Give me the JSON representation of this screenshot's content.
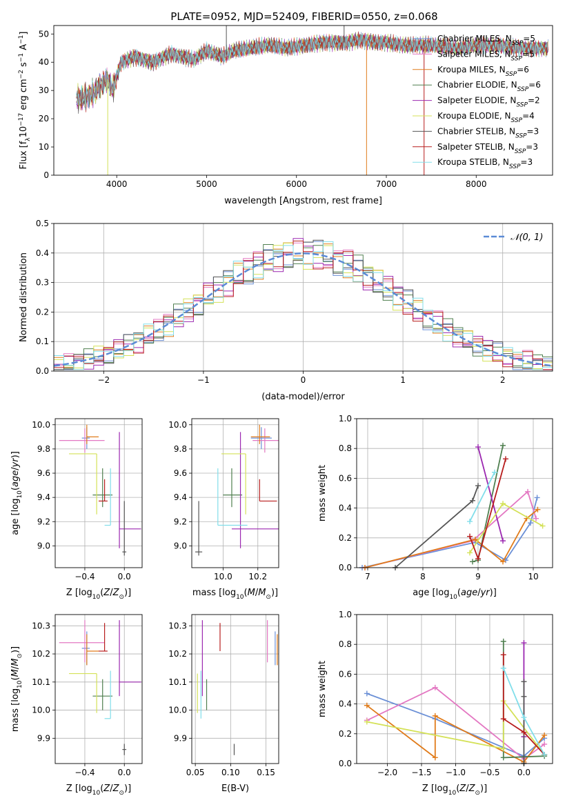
{
  "figure": {
    "title": "PLATE=0952, MJD=52409, FIBERID=0550, z=0.068"
  },
  "chart_data": [
    {
      "id": "spectrum",
      "type": "line",
      "title": "PLATE=0952, MJD=52409, FIBERID=0550, z=0.068",
      "xlabel": "wavelength [Angstrom, rest frame]",
      "ylabel": "Flux [f_λ 10^-17 erg cm^-2 s^-1 A^-1]",
      "xlim": [
        3300,
        8850
      ],
      "ylim": [
        0,
        53
      ],
      "xticks": [
        4000,
        5000,
        6000,
        7000,
        8000
      ],
      "yticks": [
        0,
        10,
        20,
        30,
        40,
        50
      ],
      "grid": false,
      "legend_position": "top-right",
      "anchor_points": [
        [
          3550,
          27
        ],
        [
          3700,
          28
        ],
        [
          3900,
          34
        ],
        [
          3950,
          30
        ],
        [
          4050,
          40
        ],
        [
          4200,
          42
        ],
        [
          4400,
          40
        ],
        [
          4600,
          43
        ],
        [
          4861,
          41
        ],
        [
          5000,
          44
        ],
        [
          5175,
          42
        ],
        [
          5300,
          44
        ],
        [
          5500,
          45
        ],
        [
          5700,
          46
        ],
        [
          5890,
          45
        ],
        [
          6100,
          46
        ],
        [
          6300,
          47
        ],
        [
          6563,
          47
        ],
        [
          6700,
          48
        ],
        [
          6900,
          47
        ],
        [
          7000,
          47
        ],
        [
          7200,
          46
        ],
        [
          7500,
          46
        ],
        [
          7800,
          45
        ],
        [
          8000,
          46
        ],
        [
          8200,
          46
        ],
        [
          8500,
          45
        ],
        [
          8800,
          45
        ]
      ],
      "series": [
        {
          "name": "Chabrier MILES, N_SSP=5",
          "color": "#6a8fd6"
        },
        {
          "name": "Salpeter MILES, N_SSP=5",
          "color": "#e377c2"
        },
        {
          "name": "Kroupa MILES, N_SSP=6",
          "color": "#e07b1a"
        },
        {
          "name": "Chabrier ELODIE, N_SSP=6",
          "color": "#4f7f4f"
        },
        {
          "name": "Salpeter ELODIE, N_SSP=2",
          "color": "#9b27b0"
        },
        {
          "name": "Kroupa ELODIE, N_SSP=4",
          "color": "#d4e157"
        },
        {
          "name": "Chabrier STELIB, N_SSP=3",
          "color": "#555555"
        },
        {
          "name": "Salpeter STELIB, N_SSP=3",
          "color": "#b71c1c"
        },
        {
          "name": "Kroupa STELIB, N_SSP=3",
          "color": "#80deea"
        }
      ]
    },
    {
      "id": "residuals",
      "type": "line",
      "xlabel": "(data-model)/error",
      "ylabel": "Normed distribution",
      "xlim": [
        -2.5,
        2.5
      ],
      "ylim": [
        0,
        0.5
      ],
      "xticks": [
        -2,
        -1,
        0,
        1,
        2
      ],
      "yticks": [
        0.0,
        0.1,
        0.2,
        0.3,
        0.4,
        0.5
      ],
      "grid": true,
      "legend_position": "top-right",
      "reference": {
        "name": "N(0,1)",
        "color": "#5b8bd6"
      },
      "bin_width": 0.1
    },
    {
      "id": "z-age",
      "type": "scatter",
      "xlabel": "Z [log10(Z/Z☉)]",
      "ylabel": "age [log10(age/yr)]",
      "xlim": [
        -0.7,
        0.18
      ],
      "ylim": [
        8.82,
        10.05
      ],
      "xticks": [
        -0.4,
        0.0
      ],
      "yticks": [
        9.0,
        9.2,
        9.4,
        9.6,
        9.8,
        10.0
      ],
      "grid": true
    },
    {
      "id": "mass-age",
      "type": "scatter",
      "xlabel": "mass [log10(M/M☉)]",
      "ylabel": "",
      "xlim": [
        9.82,
        10.32
      ],
      "ylim": [
        8.82,
        10.05
      ],
      "xticks": [
        10.0,
        10.2
      ],
      "yticks": [
        9.0,
        9.2,
        9.4,
        9.6,
        9.8,
        10.0
      ],
      "grid": true
    },
    {
      "id": "age-weight",
      "type": "line",
      "xlabel": "age [log10(age/yr)]",
      "ylabel": "mass weight",
      "xlim": [
        6.8,
        10.35
      ],
      "ylim": [
        0,
        1.0
      ],
      "xticks": [
        7,
        8,
        9,
        10
      ],
      "yticks": [
        0.0,
        0.2,
        0.4,
        0.6,
        0.8,
        1.0
      ],
      "grid": true,
      "series": [
        {
          "name": "Chabrier MILES",
          "color": "#6a8fd6",
          "x": [
            6.9,
            8.95,
            9.5,
            9.95,
            10.07
          ],
          "y": [
            0.0,
            0.17,
            0.05,
            0.3,
            0.47
          ]
        },
        {
          "name": "Salpeter MILES",
          "color": "#e377c2",
          "x": [
            6.95,
            8.9,
            9.9,
            10.05
          ],
          "y": [
            0.0,
            0.18,
            0.51,
            0.33
          ]
        },
        {
          "name": "Kroupa MILES",
          "color": "#e07b1a",
          "x": [
            6.95,
            8.95,
            9.45,
            9.88,
            10.08
          ],
          "y": [
            0.0,
            0.19,
            0.04,
            0.33,
            0.39
          ]
        },
        {
          "name": "Chabrier ELODIE",
          "color": "#4f7f4f",
          "x": [
            8.9,
            9.0,
            9.45
          ],
          "y": [
            0.04,
            0.05,
            0.82
          ]
        },
        {
          "name": "Salpeter ELODIE",
          "color": "#9b27b0",
          "x": [
            9.0,
            9.45
          ],
          "y": [
            0.81,
            0.18
          ]
        },
        {
          "name": "Kroupa ELODIE",
          "color": "#d4e157",
          "x": [
            8.85,
            9.45,
            10.17
          ],
          "y": [
            0.1,
            0.43,
            0.28
          ]
        },
        {
          "name": "Chabrier STELIB",
          "color": "#555555",
          "x": [
            7.5,
            8.9,
            9.0
          ],
          "y": [
            0.0,
            0.45,
            0.55
          ]
        },
        {
          "name": "Salpeter STELIB",
          "color": "#b71c1c",
          "x": [
            8.85,
            9.0,
            9.5
          ],
          "y": [
            0.21,
            0.06,
            0.73
          ]
        },
        {
          "name": "Kroupa STELIB",
          "color": "#80deea",
          "x": [
            8.85,
            9.3
          ],
          "y": [
            0.31,
            0.64
          ]
        }
      ]
    },
    {
      "id": "z-mass",
      "type": "scatter",
      "xlabel": "Z [log10(Z/Z☉)]",
      "ylabel": "mass [log10(M/M☉)]",
      "xlim": [
        -0.7,
        0.18
      ],
      "ylim": [
        9.81,
        10.34
      ],
      "xticks": [
        -0.4,
        0.0
      ],
      "yticks": [
        9.9,
        10.0,
        10.1,
        10.2,
        10.3
      ],
      "grid": true
    },
    {
      "id": "ebv-mass",
      "type": "scatter",
      "xlabel": "E(B-V)",
      "ylabel": "",
      "xlim": [
        0.045,
        0.168
      ],
      "ylim": [
        9.81,
        10.34
      ],
      "xticks": [
        0.05,
        0.1,
        0.15
      ],
      "yticks": [
        9.9,
        10.0,
        10.1,
        10.2,
        10.3
      ],
      "grid": true
    },
    {
      "id": "z-weight",
      "type": "line",
      "xlabel": "Z [log10(Z/Z☉)]",
      "ylabel": "mass weight",
      "xlim": [
        -2.45,
        0.42
      ],
      "ylim": [
        0,
        1.0
      ],
      "xticks": [
        -2.0,
        -1.5,
        -1.0,
        -0.5,
        0.0
      ],
      "yticks": [
        0.0,
        0.2,
        0.4,
        0.6,
        0.8,
        1.0
      ],
      "grid": true,
      "series": [
        {
          "name": "Chabrier MILES",
          "color": "#6a8fd6",
          "x": [
            -2.3,
            -1.3,
            0.0,
            0.3
          ],
          "y": [
            0.47,
            0.3,
            0.05,
            0.17
          ]
        },
        {
          "name": "Salpeter MILES",
          "color": "#e377c2",
          "x": [
            -2.3,
            -1.3,
            0.0,
            0.3
          ],
          "y": [
            0.29,
            0.51,
            0.03,
            0.13
          ]
        },
        {
          "name": "Kroupa MILES",
          "color": "#e07b1a",
          "x": [
            -2.3,
            -1.3,
            -1.3,
            0.0,
            0.3
          ],
          "y": [
            0.39,
            0.04,
            0.32,
            0.01,
            0.19
          ]
        },
        {
          "name": "Chabrier ELODIE",
          "color": "#4f7f4f",
          "x": [
            -0.3,
            -0.3,
            0.3
          ],
          "y": [
            0.82,
            0.04,
            0.05
          ]
        },
        {
          "name": "Salpeter ELODIE",
          "color": "#9b27b0",
          "x": [
            0.0,
            0.0
          ],
          "y": [
            0.81,
            0.18
          ]
        },
        {
          "name": "Kroupa ELODIE",
          "color": "#d4e157",
          "x": [
            -2.3,
            -0.3,
            -0.3,
            0.3
          ],
          "y": [
            0.28,
            0.1,
            0.42,
            0.06
          ]
        },
        {
          "name": "Chabrier STELIB",
          "color": "#555555",
          "x": [
            0.0,
            0.0,
            0.0
          ],
          "y": [
            0.55,
            0.45,
            0.0
          ]
        },
        {
          "name": "Salpeter STELIB",
          "color": "#b71c1c",
          "x": [
            -0.3,
            -0.3,
            0.0,
            0.3
          ],
          "y": [
            0.73,
            0.3,
            0.21,
            0.06
          ]
        },
        {
          "name": "Kroupa STELIB",
          "color": "#80deea",
          "x": [
            -0.3,
            0.0,
            0.3
          ],
          "y": [
            0.64,
            0.31,
            0.06
          ]
        }
      ]
    }
  ],
  "ssp_points": [
    {
      "name": "Chabrier MILES",
      "color": "#6a8fd6",
      "Z": -0.38,
      "Z_err": [
        0.05,
        0.03
      ],
      "age": 9.89,
      "age_err": [
        0.09,
        0.09
      ],
      "mass": 10.22,
      "mass_err": [
        0.06,
        0.06
      ],
      "ebv": 0.163,
      "ebv_err": [
        0.0,
        0.0
      ]
    },
    {
      "name": "Salpeter MILES",
      "color": "#e377c2",
      "Z": -0.4,
      "Z_err": [
        0.26,
        0.2
      ],
      "age": 9.87,
      "age_err": [
        0.1,
        0.1
      ],
      "mass": 10.24,
      "mass_err": [
        0.07,
        0.08
      ],
      "ebv": 0.152,
      "ebv_err": [
        0.0,
        0.0
      ]
    },
    {
      "name": "Kroupa MILES",
      "color": "#e07b1a",
      "Z": -0.38,
      "Z_err": [
        0.0,
        0.12
      ],
      "age": 9.9,
      "age_err": [
        0.06,
        0.1
      ],
      "mass": 10.21,
      "mass_err": [
        0.05,
        0.06
      ],
      "ebv": 0.166,
      "ebv_err": [
        0.0,
        0.0
      ]
    },
    {
      "name": "Chabrier ELODIE",
      "color": "#4f7f4f",
      "Z": -0.22,
      "Z_err": [
        0.1,
        0.1
      ],
      "age": 9.42,
      "age_err": [
        0.1,
        0.22
      ],
      "mass": 10.05,
      "mass_err": [
        0.05,
        0.06
      ],
      "ebv": 0.066,
      "ebv_err": [
        0.0,
        0.0
      ]
    },
    {
      "name": "Salpeter ELODIE",
      "color": "#9b27b0",
      "Z": -0.05,
      "Z_err": [
        0.0,
        0.22
      ],
      "age": 9.14,
      "age_err": [
        0.16,
        0.8
      ],
      "mass": 10.1,
      "mass_err": [
        0.05,
        0.22
      ],
      "ebv": 0.06,
      "ebv_err": [
        0.0,
        0.0
      ]
    },
    {
      "name": "Kroupa ELODIE",
      "color": "#d4e157",
      "Z": -0.28,
      "Z_err": [
        0.28,
        0.0
      ],
      "age": 9.76,
      "age_err": [
        0.5,
        0.0
      ],
      "mass": 10.13,
      "mass_err": [
        0.14,
        0.0
      ],
      "ebv": 0.053,
      "ebv_err": [
        0.0,
        0.0
      ]
    },
    {
      "name": "Chabrier STELIB",
      "color": "#555555",
      "Z": 0.0,
      "Z_err": [
        0.02,
        0.02
      ],
      "age": 8.95,
      "age_err": [
        0.03,
        0.42
      ],
      "mass": 9.86,
      "mass_err": [
        0.02,
        0.02
      ],
      "ebv": 0.105,
      "ebv_err": [
        0.0,
        0.0
      ]
    },
    {
      "name": "Salpeter STELIB",
      "color": "#b71c1c",
      "Z": -0.2,
      "Z_err": [
        0.06,
        0.03
      ],
      "age": 9.37,
      "age_err": [
        0.0,
        0.18
      ],
      "mass": 10.21,
      "mass_err": [
        0.0,
        0.1
      ],
      "ebv": 0.085,
      "ebv_err": [
        0.0,
        0.0
      ]
    },
    {
      "name": "Kroupa STELIB",
      "color": "#80deea",
      "Z": -0.14,
      "Z_err": [
        0.06,
        0.0
      ],
      "age": 9.17,
      "age_err": [
        0.0,
        0.47
      ],
      "mass": 9.97,
      "mass_err": [
        0.0,
        0.17
      ],
      "ebv": 0.058,
      "ebv_err": [
        0.0,
        0.0
      ]
    }
  ]
}
